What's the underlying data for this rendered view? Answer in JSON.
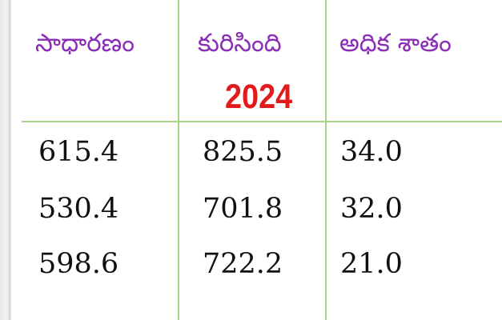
{
  "table": {
    "headers": {
      "normal": "సాధారణం",
      "received": "కురిసింది",
      "excess_percent": "అధిక శాతం"
    },
    "year": "2024",
    "rows": [
      {
        "normal": "615.4",
        "received": "825.5",
        "excess": "34.0"
      },
      {
        "normal": "530.4",
        "received": "701.8",
        "excess": "32.0"
      },
      {
        "normal": "598.6",
        "received": "722.2",
        "excess": "21.0"
      }
    ]
  },
  "colors": {
    "header_text": "#8a2fb5",
    "year_text": "#e11b1b",
    "grid_lines": "#a9d48a",
    "number_text": "#111111"
  }
}
